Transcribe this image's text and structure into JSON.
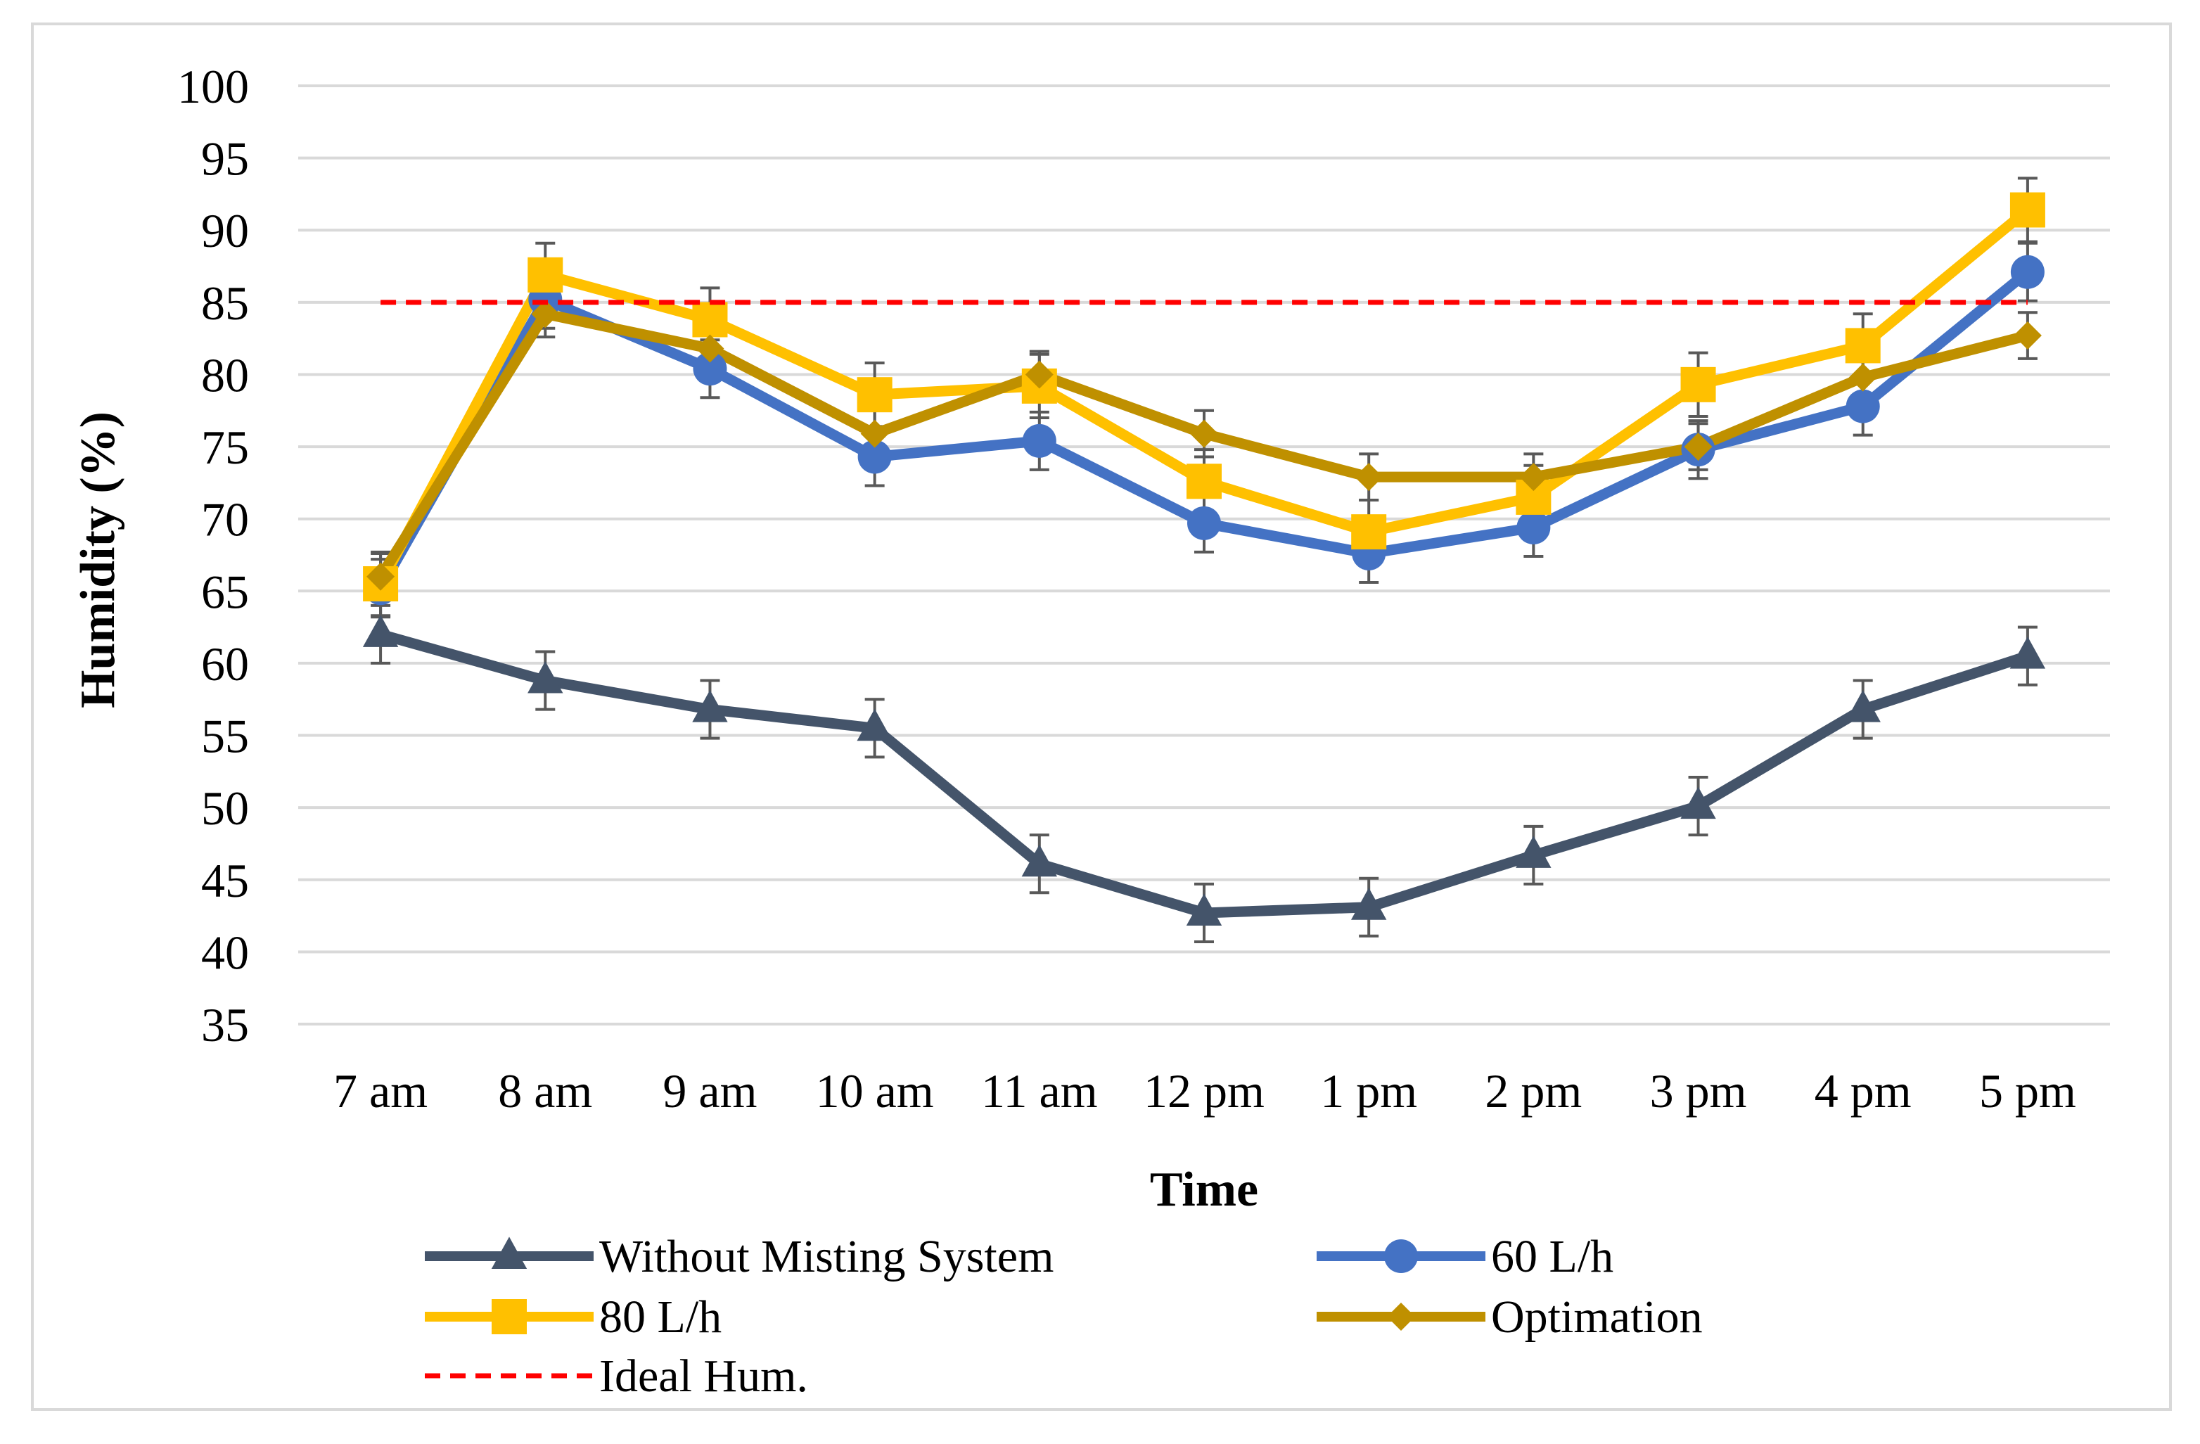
{
  "chart_data": {
    "type": "line",
    "title": "",
    "xlabel": "Time",
    "ylabel": "Humidity (%)",
    "ylim": [
      35,
      100
    ],
    "yticks": [
      35,
      40,
      45,
      50,
      55,
      60,
      65,
      70,
      75,
      80,
      85,
      90,
      95,
      100
    ],
    "ytick_labels": [
      "35",
      "40",
      "45",
      "50",
      "55",
      "60",
      "65",
      "70",
      "75",
      "80",
      "85",
      "90",
      "95",
      "100"
    ],
    "grid": true,
    "legend_position": "bottom",
    "categories": [
      "7 am",
      "8 am",
      "9 am",
      "10 am",
      "11 am",
      "12 pm",
      "1 pm",
      "2 pm",
      "3 pm",
      "4 pm",
      "5 pm"
    ],
    "series": [
      {
        "name": "Without Misting System",
        "color": "#44546A",
        "marker": "triangle",
        "values": [
          62.0,
          58.8,
          56.8,
          55.5,
          46.1,
          42.7,
          43.1,
          46.7,
          50.1,
          56.8,
          60.5
        ],
        "error": 2.0
      },
      {
        "name": "60 L/h",
        "color": "#4472C4",
        "marker": "circle",
        "values": [
          65.2,
          85.2,
          80.4,
          74.3,
          75.4,
          69.7,
          67.6,
          69.4,
          74.8,
          77.8,
          87.1
        ],
        "error": 2.0
      },
      {
        "name": "80 L/h",
        "color": "#FFC000",
        "marker": "square",
        "values": [
          65.5,
          86.9,
          83.8,
          78.6,
          79.2,
          72.6,
          69.1,
          71.5,
          79.3,
          82.0,
          91.4
        ],
        "error": 2.2
      },
      {
        "name": "Optimation",
        "color": "#BF9000",
        "marker": "diamond",
        "values": [
          66.0,
          84.2,
          81.8,
          75.9,
          80.0,
          75.9,
          72.9,
          72.9,
          75.0,
          79.8,
          82.7
        ],
        "error": 1.6
      },
      {
        "name": "Ideal Hum.",
        "color": "#FF0000",
        "marker": "none",
        "dashed": true,
        "values": [
          85,
          85,
          85,
          85,
          85,
          85,
          85,
          85,
          85,
          85,
          85
        ]
      }
    ]
  }
}
